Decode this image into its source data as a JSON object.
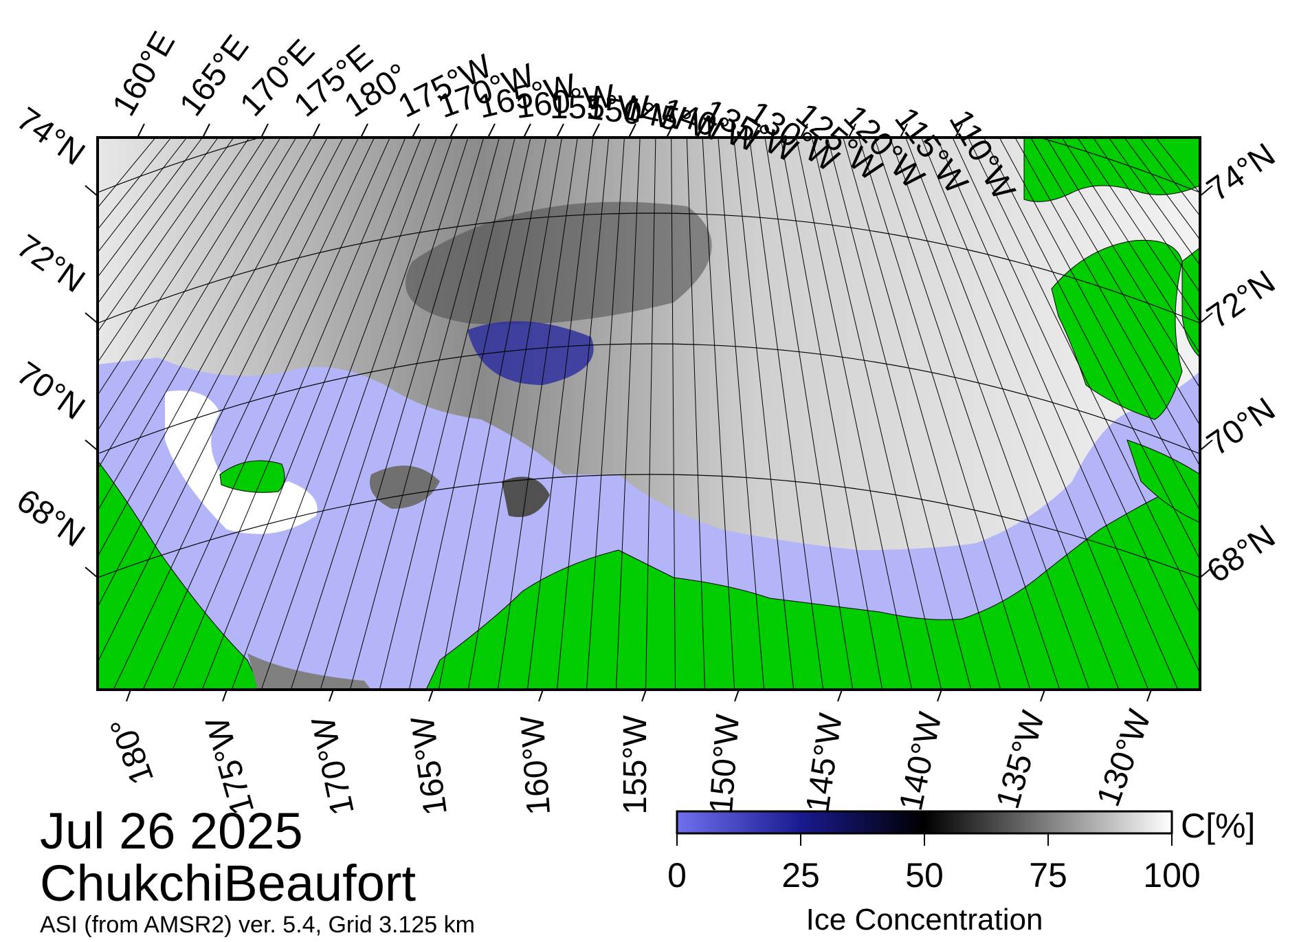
{
  "map": {
    "date": "Jul 26 2025",
    "region": "ChukchiBeaufort",
    "product": "ASI (from AMSR2) ver. 5.4,  Grid 3.125 km",
    "top_lon_labels": [
      "160°E",
      "165°E",
      "170°E",
      "175°E",
      "180°",
      "175°W",
      "170°W",
      "165°W",
      "160°W",
      "155°W",
      "150°W",
      "145°W",
      "140°W",
      "135°W",
      "130°W",
      "125°W",
      "120°W",
      "115°W",
      "110°W"
    ],
    "bottom_lon_labels": [
      "180°",
      "175°W",
      "170°W",
      "165°W",
      "160°W",
      "155°W",
      "150°W",
      "145°W",
      "140°W",
      "135°W",
      "130°W"
    ],
    "left_lat_labels": [
      "74°N",
      "72°N",
      "70°N",
      "68°N"
    ],
    "right_lat_labels": [
      "74°N",
      "72°N",
      "70°N",
      "68°N"
    ],
    "colors": {
      "land": "#00cc00",
      "open_water": "#b4b4f8",
      "missing": "#808080",
      "ice_low": "#6666ee",
      "ice_mid": "#000000",
      "ice_high": "#ffffff"
    }
  },
  "colorbar": {
    "unit": "C[%]",
    "title": "Ice Concentration",
    "ticks": [
      "0",
      "25",
      "50",
      "75",
      "100"
    ],
    "min": 0,
    "max": 100
  }
}
